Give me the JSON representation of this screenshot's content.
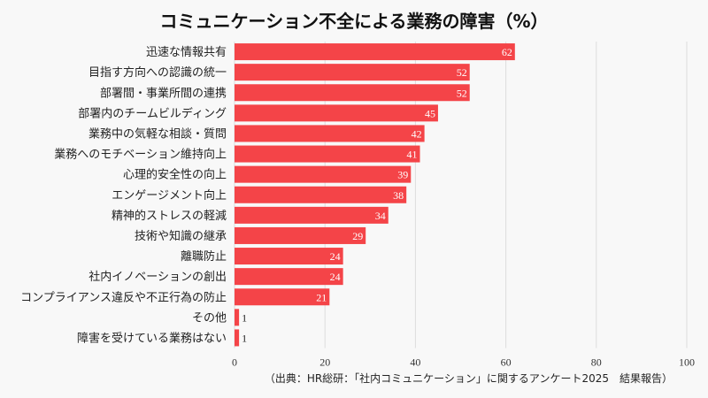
{
  "chart_data": {
    "type": "bar",
    "orientation": "horizontal",
    "title": "コミュニケーション不全による業務の障害（%）",
    "categories": [
      "迅速な情報共有",
      "目指す方向への認識の統一",
      "部署間・事業所間の連携",
      "部署内のチームビルディング",
      "業務中の気軽な相談・質問",
      "業務へのモチベーション維持向上",
      "心理的安全性の向上",
      "エンゲージメント向上",
      "精神的ストレスの軽減",
      "技術や知識の継承",
      "離職防止",
      "社内イノベーションの創出",
      "コンプライアンス違反や不正行為の防止",
      "その他",
      "障害を受けている業務はない"
    ],
    "values": [
      62,
      52,
      52,
      45,
      42,
      41,
      39,
      38,
      34,
      29,
      24,
      24,
      21,
      1,
      1
    ],
    "xlim": [
      0,
      100
    ],
    "xticks": [
      0,
      20,
      40,
      60,
      80,
      100
    ],
    "grid": true,
    "bar_color": "#f44448",
    "source": "（出典：HR総研：「社内コミュニケーション」に関するアンケート2025　結果報告）"
  }
}
